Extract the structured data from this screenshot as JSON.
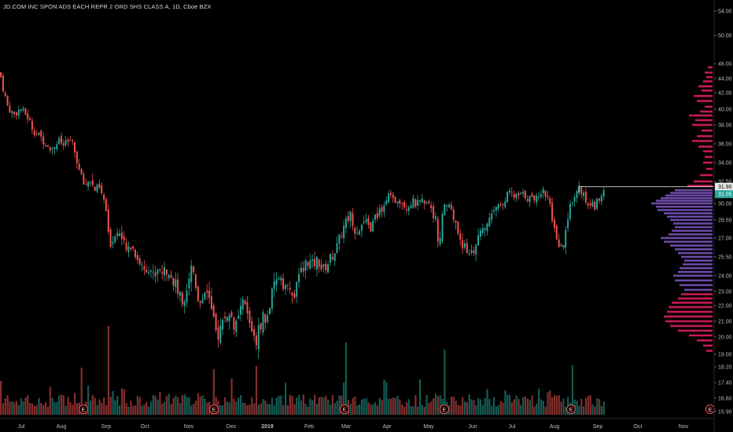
{
  "header": {
    "title": "JD.COM INC SPON ADS EACH REPR 2 ORD SHS CLASS A, 1D, Cboe BZX"
  },
  "colors": {
    "up": "#26a69a",
    "down": "#ef5350",
    "profile_up": "#7e57c2",
    "profile_down": "#e91e63",
    "grid_text": "#bdbdbd",
    "last_price_bg": "#26a69a",
    "marker_line": "#ffffff",
    "earnings": "#ef5350"
  },
  "chart_data": {
    "type": "candlestick",
    "title": "JD.COM INC SPON ADS EACH REPR 2 ORD SHS CLASS A, 1D, Cboe BZX",
    "y_ticks": [
      "54.00",
      "50.00",
      "46.00",
      "44.00",
      "42.00",
      "40.00",
      "38.00",
      "36.00",
      "34.00",
      "32.50",
      "30.00",
      "28.50",
      "27.00",
      "25.50",
      "24.00",
      "23.00",
      "22.00",
      "21.00",
      "20.00",
      "19.00",
      "18.20",
      "17.40",
      "16.60",
      "15.90"
    ],
    "x_ticks": [
      "Jul",
      "Aug",
      "Sep",
      "Oct",
      "Nov",
      "Dec",
      "2019",
      "Feb",
      "Mar",
      "Apr",
      "May",
      "Jun",
      "Jul",
      "Aug",
      "Sep",
      "Oct",
      "Nov"
    ],
    "ylim": [
      15.5,
      55
    ],
    "price_path": [
      [
        0,
        44.8
      ],
      [
        4,
        42.5
      ],
      [
        10,
        40.2
      ],
      [
        18,
        39.3
      ],
      [
        26,
        40.1
      ],
      [
        34,
        39.2
      ],
      [
        42,
        37.5
      ],
      [
        50,
        36.8
      ],
      [
        58,
        36.1
      ],
      [
        66,
        35.5
      ],
      [
        74,
        36.3
      ],
      [
        82,
        35.8
      ],
      [
        90,
        36.4
      ],
      [
        96,
        34.8
      ],
      [
        102,
        33.0
      ],
      [
        108,
        32.0
      ],
      [
        114,
        32.8
      ],
      [
        120,
        31.5
      ],
      [
        126,
        31.8
      ],
      [
        130,
        30.8
      ],
      [
        134,
        30.0
      ],
      [
        138,
        27.0
      ],
      [
        142,
        26.5
      ],
      [
        148,
        27.8
      ],
      [
        154,
        27.2
      ],
      [
        160,
        25.9
      ],
      [
        166,
        26.5
      ],
      [
        172,
        25.8
      ],
      [
        178,
        25.0
      ],
      [
        184,
        24.5
      ],
      [
        190,
        24.8
      ],
      [
        196,
        23.9
      ],
      [
        202,
        24.8
      ],
      [
        208,
        24.2
      ],
      [
        214,
        24.6
      ],
      [
        220,
        23.8
      ],
      [
        226,
        23.0
      ],
      [
        232,
        22.2
      ],
      [
        238,
        23.4
      ],
      [
        244,
        24.9
      ],
      [
        248,
        23.8
      ],
      [
        252,
        22.6
      ],
      [
        256,
        22.2
      ],
      [
        262,
        23.5
      ],
      [
        266,
        22.5
      ],
      [
        270,
        21.2
      ],
      [
        276,
        20.0
      ],
      [
        282,
        20.8
      ],
      [
        288,
        21.5
      ],
      [
        294,
        21.2
      ],
      [
        300,
        20.6
      ],
      [
        306,
        21.6
      ],
      [
        310,
        22.5
      ],
      [
        314,
        21.4
      ],
      [
        318,
        20.8
      ],
      [
        322,
        20.3
      ],
      [
        326,
        19.8
      ],
      [
        330,
        20.6
      ],
      [
        334,
        21.4
      ],
      [
        338,
        20.8
      ],
      [
        342,
        21.8
      ],
      [
        346,
        22.8
      ],
      [
        350,
        23.4
      ],
      [
        356,
        24.2
      ],
      [
        362,
        23.3
      ],
      [
        368,
        23.0
      ],
      [
        374,
        22.6
      ],
      [
        380,
        23.8
      ],
      [
        386,
        24.8
      ],
      [
        392,
        25.2
      ],
      [
        398,
        24.8
      ],
      [
        404,
        25.3
      ],
      [
        410,
        24.4
      ],
      [
        416,
        24.9
      ],
      [
        422,
        25.6
      ],
      [
        428,
        26.2
      ],
      [
        434,
        27.4
      ],
      [
        440,
        28.4
      ],
      [
        446,
        29.0
      ],
      [
        452,
        27.6
      ],
      [
        458,
        28.0
      ],
      [
        464,
        28.2
      ],
      [
        470,
        27.8
      ],
      [
        476,
        28.5
      ],
      [
        482,
        29.2
      ],
      [
        488,
        30.0
      ],
      [
        494,
        30.9
      ],
      [
        500,
        30.2
      ],
      [
        506,
        30.6
      ],
      [
        512,
        30.1
      ],
      [
        518,
        29.7
      ],
      [
        524,
        30.3
      ],
      [
        530,
        29.9
      ],
      [
        536,
        30.2
      ],
      [
        542,
        30.5
      ],
      [
        548,
        29.8
      ],
      [
        554,
        28.4
      ],
      [
        558,
        26.6
      ],
      [
        562,
        28.5
      ],
      [
        566,
        29.8
      ],
      [
        570,
        30.2
      ],
      [
        574,
        29.3
      ],
      [
        578,
        28.3
      ],
      [
        584,
        27.2
      ],
      [
        590,
        26.2
      ],
      [
        596,
        25.9
      ],
      [
        602,
        26.1
      ],
      [
        608,
        26.8
      ],
      [
        614,
        27.8
      ],
      [
        620,
        28.2
      ],
      [
        626,
        28.8
      ],
      [
        630,
        29.7
      ],
      [
        636,
        30.0
      ],
      [
        642,
        30.6
      ],
      [
        648,
        31.2
      ],
      [
        654,
        30.7
      ],
      [
        660,
        30.9
      ],
      [
        666,
        31.0
      ],
      [
        672,
        30.6
      ],
      [
        678,
        30.5
      ],
      [
        684,
        30.9
      ],
      [
        690,
        31.5
      ],
      [
        696,
        30.9
      ],
      [
        700,
        29.2
      ],
      [
        704,
        27.8
      ],
      [
        708,
        26.5
      ],
      [
        712,
        25.9
      ],
      [
        716,
        26.4
      ],
      [
        720,
        27.5
      ],
      [
        724,
        29.3
      ],
      [
        728,
        30.6
      ],
      [
        732,
        30.9
      ],
      [
        736,
        31.8
      ],
      [
        740,
        31.2
      ],
      [
        744,
        30.5
      ],
      [
        748,
        29.6
      ],
      [
        752,
        30.2
      ],
      [
        756,
        29.8
      ],
      [
        760,
        30.5
      ],
      [
        764,
        31.0
      ],
      [
        768,
        31.1
      ]
    ],
    "volume_spikes": [
      [
        1,
        43
      ],
      [
        104,
        60
      ],
      [
        138,
        113
      ],
      [
        270,
        58
      ],
      [
        326,
        62
      ],
      [
        438,
        92
      ],
      [
        565,
        83
      ],
      [
        726,
        63
      ]
    ],
    "last_price": "31.05",
    "marker_price": "31.90",
    "earnings_marker_label": "E",
    "earnings_dates_x": [
      106,
      272,
      438,
      565,
      726,
      903
    ],
    "volume_profile": [
      [
        45.5,
        6,
        0
      ],
      [
        44.8,
        10,
        0
      ],
      [
        44.2,
        8,
        0
      ],
      [
        43.6,
        12,
        0
      ],
      [
        42.9,
        18,
        0
      ],
      [
        42.3,
        14,
        0
      ],
      [
        41.6,
        24,
        0
      ],
      [
        41.0,
        20,
        0
      ],
      [
        40.3,
        10,
        0
      ],
      [
        39.7,
        16,
        0
      ],
      [
        39.2,
        30,
        0
      ],
      [
        38.6,
        22,
        0
      ],
      [
        38.0,
        26,
        0
      ],
      [
        37.4,
        14,
        0
      ],
      [
        36.8,
        20,
        0
      ],
      [
        36.3,
        26,
        0
      ],
      [
        35.7,
        18,
        0
      ],
      [
        35.2,
        12,
        0
      ],
      [
        34.6,
        10,
        0
      ],
      [
        34.0,
        12,
        0
      ],
      [
        33.5,
        8,
        0
      ],
      [
        33.0,
        16,
        0
      ],
      [
        32.5,
        24,
        0
      ],
      [
        32.0,
        32,
        0
      ],
      [
        31.5,
        48,
        1
      ],
      [
        31.2,
        54,
        1
      ],
      [
        30.9,
        60,
        1
      ],
      [
        30.6,
        66,
        1
      ],
      [
        30.3,
        72,
        1
      ],
      [
        30.0,
        78,
        1
      ],
      [
        29.7,
        72,
        1
      ],
      [
        29.4,
        70,
        1
      ],
      [
        29.1,
        62,
        1
      ],
      [
        28.8,
        58,
        1
      ],
      [
        28.5,
        54,
        1
      ],
      [
        28.2,
        50,
        1
      ],
      [
        27.9,
        48,
        1
      ],
      [
        27.6,
        52,
        1
      ],
      [
        27.3,
        56,
        1
      ],
      [
        27.0,
        66,
        1
      ],
      [
        26.7,
        62,
        1
      ],
      [
        26.4,
        54,
        1
      ],
      [
        26.1,
        48,
        1
      ],
      [
        25.8,
        44,
        1
      ],
      [
        25.5,
        40,
        1
      ],
      [
        25.2,
        36,
        1
      ],
      [
        24.9,
        38,
        1
      ],
      [
        24.6,
        42,
        1
      ],
      [
        24.3,
        44,
        1
      ],
      [
        24.0,
        50,
        1
      ],
      [
        23.7,
        48,
        1
      ],
      [
        23.4,
        42,
        1
      ],
      [
        23.1,
        36,
        1
      ],
      [
        22.8,
        40,
        0
      ],
      [
        22.5,
        44,
        0
      ],
      [
        22.2,
        52,
        0
      ],
      [
        21.9,
        56,
        0
      ],
      [
        21.6,
        58,
        0
      ],
      [
        21.3,
        62,
        0
      ],
      [
        21.0,
        60,
        0
      ],
      [
        20.7,
        54,
        0
      ],
      [
        20.4,
        44,
        0
      ],
      [
        20.1,
        30,
        0
      ],
      [
        19.8,
        20,
        0
      ],
      [
        19.5,
        12,
        0
      ],
      [
        19.2,
        8,
        0
      ]
    ]
  }
}
